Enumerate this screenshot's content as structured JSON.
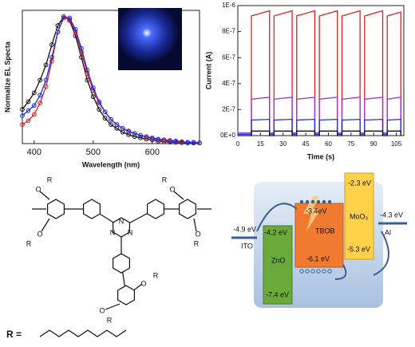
{
  "chart_data": [
    {
      "type": "line",
      "xlabel": "Wavelength (nm)",
      "ylabel": "Normalize EL Specta",
      "x": [
        380,
        390,
        400,
        410,
        420,
        430,
        440,
        450,
        460,
        470,
        480,
        490,
        500,
        510,
        520,
        530,
        540,
        550,
        560,
        570,
        580,
        590,
        600,
        610,
        620,
        630,
        640,
        650,
        660,
        670,
        680
      ],
      "xlim": [
        380,
        680
      ],
      "xticks": [
        400,
        500,
        600
      ],
      "ylim": [
        0,
        1.05
      ],
      "markers": "circle",
      "series": [
        {
          "color": "#111111",
          "values": [
            0.27,
            0.33,
            0.4,
            0.5,
            0.62,
            0.78,
            0.93,
            1.0,
            0.97,
            0.85,
            0.68,
            0.5,
            0.37,
            0.27,
            0.2,
            0.15,
            0.12,
            0.09,
            0.07,
            0.055,
            0.045,
            0.035,
            0.03,
            0.02,
            0.015,
            0.012,
            0.01,
            0.008,
            0.006,
            0.005,
            0.004
          ]
        },
        {
          "color": "#e02020",
          "values": [
            0.15,
            0.18,
            0.23,
            0.32,
            0.45,
            0.65,
            0.88,
            0.99,
            0.98,
            0.88,
            0.72,
            0.55,
            0.42,
            0.32,
            0.25,
            0.19,
            0.15,
            0.12,
            0.1,
            0.08,
            0.065,
            0.05,
            0.04,
            0.03,
            0.025,
            0.02,
            0.015,
            0.012,
            0.01,
            0.008,
            0.006
          ]
        },
        {
          "color": "#2030e0",
          "values": [
            0.22,
            0.26,
            0.3,
            0.38,
            0.5,
            0.68,
            0.88,
            1.0,
            0.99,
            0.9,
            0.75,
            0.58,
            0.44,
            0.33,
            0.25,
            0.19,
            0.15,
            0.12,
            0.095,
            0.08,
            0.065,
            0.055,
            0.045,
            0.035,
            0.03,
            0.025,
            0.02,
            0.015,
            0.01,
            0.01,
            0.005
          ]
        }
      ]
    },
    {
      "type": "line",
      "xlabel": "Time (s)",
      "ylabel": "Current (A)",
      "x": [
        0,
        9,
        9,
        21,
        21,
        24,
        24,
        36,
        36,
        39,
        39,
        51,
        51,
        54,
        54,
        66,
        66,
        69,
        69,
        81,
        81,
        84,
        84,
        96,
        96,
        99,
        99,
        108,
        108
      ],
      "xlim": [
        0,
        110
      ],
      "xticks": [
        0,
        15,
        30,
        45,
        60,
        75,
        90,
        105
      ],
      "ylim": [
        0,
        1e-06
      ],
      "yticks": [
        {
          "value": 0,
          "label": "0E+0"
        },
        {
          "value": 2e-07,
          "label": "2E-7"
        },
        {
          "value": 4e-07,
          "label": "4E-7"
        },
        {
          "value": 6e-07,
          "label": "6E-7"
        },
        {
          "value": 8e-07,
          "label": "8E-7"
        },
        {
          "value": 1e-06,
          "label": "1E-6"
        }
      ],
      "series": [
        {
          "color": "#e02020",
          "values": [
            2e-08,
            2e-08,
            9.2e-07,
            9.6e-07,
            2e-08,
            2e-08,
            9.2e-07,
            9.6e-07,
            2e-08,
            2e-08,
            9.2e-07,
            9.6e-07,
            2e-08,
            2e-08,
            9.2e-07,
            9.6e-07,
            2e-08,
            2e-08,
            9.2e-07,
            9.6e-07,
            2e-08,
            2e-08,
            9.2e-07,
            9.6e-07,
            2e-08,
            2e-08,
            9.2e-07,
            9.5e-07,
            2e-08
          ]
        },
        {
          "color": "#a030d8",
          "values": [
            2e-08,
            2e-08,
            2.8e-07,
            2.95e-07,
            2e-08,
            2e-08,
            2.8e-07,
            2.95e-07,
            2e-08,
            2e-08,
            2.8e-07,
            2.95e-07,
            2e-08,
            2e-08,
            2.8e-07,
            2.95e-07,
            2e-08,
            2e-08,
            2.8e-07,
            2.95e-07,
            2e-08,
            2e-08,
            2.8e-07,
            2.95e-07,
            2e-08,
            2e-08,
            2.8e-07,
            2.95e-07,
            2e-08
          ]
        },
        {
          "color": "#2030e0",
          "values": [
            1e-08,
            1e-08,
            1.2e-07,
            1.25e-07,
            1e-08,
            1e-08,
            1.2e-07,
            1.25e-07,
            1e-08,
            1e-08,
            1.2e-07,
            1.25e-07,
            1e-08,
            1e-08,
            1.2e-07,
            1.25e-07,
            1e-08,
            1e-08,
            1.2e-07,
            1.25e-07,
            1e-08,
            1e-08,
            1.2e-07,
            1.25e-07,
            1e-08,
            1e-08,
            1.2e-07,
            1.25e-07,
            1e-08
          ]
        },
        {
          "color": "#111111",
          "values": [
            0,
            0,
            3.5e-08,
            3.5e-08,
            0,
            0,
            3.5e-08,
            3.5e-08,
            0,
            0,
            3.5e-08,
            3.5e-08,
            0,
            0,
            3.5e-08,
            3.5e-08,
            0,
            0,
            3.5e-08,
            3.5e-08,
            0,
            0,
            3.5e-08,
            3.5e-08,
            0,
            0,
            3.5e-08,
            3.5e-08,
            0
          ]
        }
      ]
    }
  ],
  "structure": {
    "oxygen": "O",
    "r_group": "R",
    "nitrogen": "N",
    "r_definition": "R ="
  },
  "energy_diagram": {
    "ito": {
      "name": "ITO",
      "level": "-4.9 eV"
    },
    "zno": {
      "name": "ZnO",
      "lumo": "-4.2 eV",
      "homo": "-7.4 eV"
    },
    "tbob": {
      "name": "TBOB",
      "lumo": "-3.4eV",
      "homo": "-6.1 eV"
    },
    "moo3": {
      "name": "MoO₃",
      "lumo": "-2.3 eV",
      "homo": "-5.3 eV"
    },
    "al": {
      "name": "Al",
      "level": "-4.3 eV"
    }
  }
}
